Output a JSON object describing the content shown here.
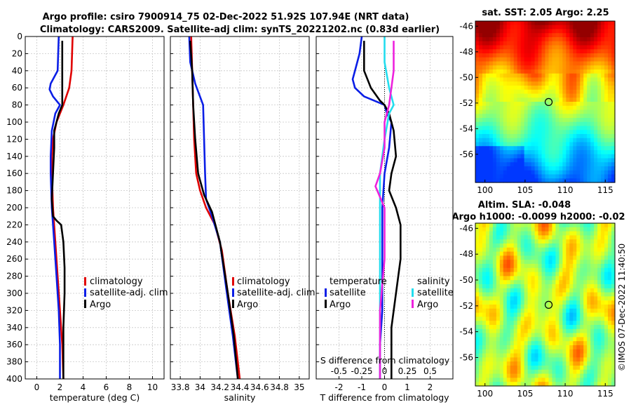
{
  "header": {
    "title_line1": "Argo profile: csiro 7900914_75 02-Dec-2022 51.92S 107.94E (NRT data)",
    "title_line2": "Climatology: CARS2009. Satellite-adj clim: synTS_20221202.nc (0.83d earlier)"
  },
  "colors": {
    "climatology": "#e00000",
    "satellite": "#0a1ee6",
    "argo": "#000000",
    "sat_sal": "#22ddee",
    "argo_sal": "#ee22dd",
    "grid": "#c8c8c8"
  },
  "chart_data": [
    {
      "id": "temperature",
      "type": "line",
      "xlabel": "temperature (deg C)",
      "ylabel": "",
      "xlim": [
        -1,
        11
      ],
      "ylim": [
        400,
        0
      ],
      "xticks": [
        0,
        2,
        4,
        6,
        8,
        10
      ],
      "xtick_labels": [
        "0",
        "2",
        "4",
        "6",
        "8",
        "10"
      ],
      "yticks": [
        0,
        20,
        40,
        60,
        80,
        100,
        120,
        140,
        160,
        180,
        200,
        220,
        240,
        260,
        280,
        300,
        320,
        340,
        360,
        380,
        400
      ],
      "ytick_labels": [
        "0",
        "20",
        "40",
        "60",
        "80",
        "100",
        "120",
        "140",
        "160",
        "180",
        "200",
        "220",
        "240",
        "260",
        "280",
        "300",
        "320",
        "340",
        "360",
        "380",
        "400"
      ],
      "legend": [
        "climatology",
        "satellite-adj. clim",
        "Argo"
      ],
      "series": [
        {
          "name": "climatology",
          "color_key": "climatology",
          "points": [
            [
              3.1,
              0
            ],
            [
              3.05,
              20
            ],
            [
              3.0,
              40
            ],
            [
              2.8,
              60
            ],
            [
              2.3,
              80
            ],
            [
              1.7,
              100
            ],
            [
              1.4,
              120
            ],
            [
              1.3,
              140
            ],
            [
              1.3,
              160
            ],
            [
              1.4,
              200
            ],
            [
              1.6,
              240
            ],
            [
              1.8,
              280
            ],
            [
              2.0,
              320
            ],
            [
              2.2,
              360
            ],
            [
              2.3,
              400
            ]
          ]
        },
        {
          "name": "satellite-adj. clim",
          "color_key": "satellite",
          "points": [
            [
              1.9,
              0
            ],
            [
              1.85,
              20
            ],
            [
              1.8,
              40
            ],
            [
              1.2,
              55
            ],
            [
              1.1,
              62
            ],
            [
              1.4,
              70
            ],
            [
              2.0,
              80
            ],
            [
              1.6,
              90
            ],
            [
              1.3,
              110
            ],
            [
              1.2,
              140
            ],
            [
              1.2,
              160
            ],
            [
              1.3,
              200
            ],
            [
              1.5,
              240
            ],
            [
              1.7,
              280
            ],
            [
              1.9,
              320
            ],
            [
              2.0,
              360
            ],
            [
              2.0,
              400
            ]
          ]
        },
        {
          "name": "Argo",
          "color_key": "argo",
          "points": [
            [
              2.2,
              5
            ],
            [
              2.2,
              40
            ],
            [
              2.2,
              80
            ],
            [
              1.9,
              90
            ],
            [
              1.5,
              110
            ],
            [
              1.5,
              130
            ],
            [
              1.4,
              160
            ],
            [
              1.3,
              190
            ],
            [
              1.4,
              210
            ],
            [
              1.7,
              215
            ],
            [
              2.1,
              220
            ],
            [
              2.3,
              240
            ],
            [
              2.4,
              270
            ],
            [
              2.4,
              300
            ],
            [
              2.3,
              340
            ],
            [
              2.3,
              380
            ],
            [
              2.3,
              400
            ]
          ]
        }
      ]
    },
    {
      "id": "salinity",
      "type": "line",
      "xlabel": "salinity",
      "ylabel": "",
      "xlim": [
        33.7,
        35.1
      ],
      "ylim": [
        400,
        0
      ],
      "xticks": [
        33.8,
        34.0,
        34.2,
        34.4,
        34.6,
        34.8,
        35.0
      ],
      "xtick_labels": [
        "33.8",
        "34",
        "34.2",
        "34.4",
        "34.6",
        "34.8",
        "35"
      ],
      "legend": [
        "climatology",
        "satellite-adj. clim",
        "Argo"
      ],
      "series": [
        {
          "name": "climatology",
          "color_key": "climatology",
          "points": [
            [
              33.91,
              0
            ],
            [
              33.92,
              40
            ],
            [
              33.93,
              80
            ],
            [
              33.94,
              120
            ],
            [
              33.96,
              160
            ],
            [
              34.0,
              180
            ],
            [
              34.06,
              200
            ],
            [
              34.15,
              220
            ],
            [
              34.22,
              250
            ],
            [
              34.28,
              300
            ],
            [
              34.35,
              350
            ],
            [
              34.4,
              400
            ]
          ]
        },
        {
          "name": "satellite-adj. clim",
          "color_key": "satellite",
          "points": [
            [
              33.89,
              0
            ],
            [
              33.9,
              30
            ],
            [
              33.95,
              55
            ],
            [
              34.03,
              80
            ],
            [
              34.04,
              120
            ],
            [
              34.05,
              160
            ],
            [
              34.06,
              190
            ],
            [
              34.12,
              210
            ],
            [
              34.2,
              240
            ],
            [
              34.27,
              300
            ],
            [
              34.33,
              350
            ],
            [
              34.38,
              400
            ]
          ]
        },
        {
          "name": "Argo",
          "color_key": "argo",
          "points": [
            [
              33.9,
              5
            ],
            [
              33.92,
              40
            ],
            [
              33.93,
              80
            ],
            [
              33.95,
              120
            ],
            [
              33.98,
              160
            ],
            [
              34.04,
              185
            ],
            [
              34.12,
              205
            ],
            [
              34.2,
              240
            ],
            [
              34.28,
              300
            ],
            [
              34.34,
              350
            ],
            [
              34.38,
              400
            ]
          ]
        }
      ]
    },
    {
      "id": "difference",
      "type": "line",
      "xlabel": "T difference from climatology",
      "xlabel_top": "S difference from climatology",
      "ylabel": "",
      "xlim": [
        -3,
        3
      ],
      "ylim": [
        400,
        0
      ],
      "xticks": [
        -2,
        -1,
        0,
        1,
        2
      ],
      "xtick_labels": [
        "-2",
        "-1",
        "0",
        "1",
        "2"
      ],
      "s_ticks": [
        -0.5,
        -0.25,
        0,
        0.25,
        0.5
      ],
      "s_tick_labels": [
        "-0.5",
        "-0.25",
        "0",
        "0.25",
        "0.5"
      ],
      "legend_t_title": "temperature",
      "legend_s_title": "salinity",
      "legend": [
        "satellite",
        "Argo",
        "satellite",
        "Argo"
      ],
      "series": [
        {
          "name": "T satellite",
          "color_key": "satellite",
          "points": [
            [
              -1.0,
              0
            ],
            [
              -1.1,
              20
            ],
            [
              -1.3,
              40
            ],
            [
              -1.4,
              50
            ],
            [
              -1.3,
              60
            ],
            [
              -0.9,
              70
            ],
            [
              0.0,
              80
            ],
            [
              0.1,
              90
            ],
            [
              0.3,
              100
            ],
            [
              0.2,
              130
            ],
            [
              0.0,
              160
            ],
            [
              -0.1,
              200
            ],
            [
              -0.1,
              260
            ],
            [
              -0.1,
              320
            ],
            [
              -0.2,
              360
            ],
            [
              -0.2,
              400
            ]
          ]
        },
        {
          "name": "T Argo",
          "color_key": "argo",
          "points": [
            [
              -0.9,
              5
            ],
            [
              -0.9,
              40
            ],
            [
              -0.6,
              60
            ],
            [
              -0.2,
              75
            ],
            [
              0.0,
              80
            ],
            [
              0.2,
              90
            ],
            [
              0.4,
              110
            ],
            [
              0.5,
              140
            ],
            [
              0.3,
              160
            ],
            [
              0.2,
              180
            ],
            [
              0.5,
              200
            ],
            [
              0.7,
              220
            ],
            [
              0.7,
              260
            ],
            [
              0.5,
              300
            ],
            [
              0.3,
              340
            ],
            [
              0.3,
              380
            ],
            [
              0.3,
              400
            ]
          ]
        },
        {
          "name": "S satellite",
          "color_key": "sat_sal",
          "points": [
            [
              0.0,
              0
            ],
            [
              0.0,
              30
            ],
            [
              0.05,
              60
            ],
            [
              0.1,
              80
            ],
            [
              0.05,
              90
            ],
            [
              0.0,
              120
            ],
            [
              -0.05,
              160
            ],
            [
              -0.05,
              200
            ],
            [
              -0.05,
              260
            ],
            [
              -0.05,
              320
            ],
            [
              -0.05,
              400
            ]
          ]
        },
        {
          "name": "S Argo",
          "color_key": "argo_sal",
          "points": [
            [
              0.1,
              5
            ],
            [
              0.1,
              40
            ],
            [
              0.05,
              80
            ],
            [
              0.0,
              100
            ],
            [
              0.0,
              130
            ],
            [
              -0.05,
              160
            ],
            [
              -0.1,
              175
            ],
            [
              0.0,
              200
            ],
            [
              0.0,
              260
            ],
            [
              -0.05,
              320
            ],
            [
              -0.05,
              400
            ]
          ]
        }
      ]
    }
  ],
  "maps": [
    {
      "title": "sat. SST: 2.05 Argo: 2.25",
      "xticks": [
        "100",
        "105",
        "110",
        "115"
      ],
      "yticks": [
        "-46",
        "-48",
        "-50",
        "-52",
        "-54",
        "-56"
      ]
    },
    {
      "title_line1": "Altim. SLA: -0.048",
      "title_line2": "Argo h1000: -0.0099 h2000: -0.02",
      "xticks": [
        "100",
        "105",
        "110",
        "115"
      ],
      "yticks": [
        "-46",
        "-48",
        "-50",
        "-52",
        "-54",
        "-56"
      ]
    }
  ],
  "credit": "©IMOS 07-Dec-2022 11:40:50"
}
